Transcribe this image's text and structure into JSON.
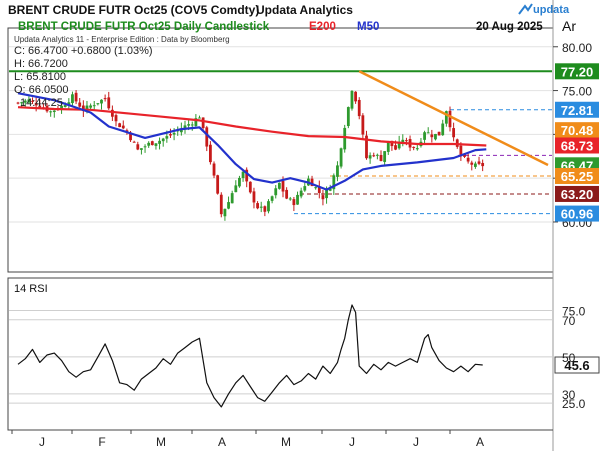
{
  "header": {
    "title": "BRENT CRUDE FUTR  Oct25 (COV5 Comdty)",
    "publisher": "Updata Analytics",
    "brand": "updata",
    "subtitle": "BRENT CRUDE FUTR  Oct25 Daily Candlestick",
    "legend_e200": "E200",
    "legend_m50": "M50",
    "date": "20 Aug 2025",
    "axis_corner": "Ar"
  },
  "info": {
    "source": "Updata Analytics 11 - Enterprise Edition : Data by Bloomberg",
    "close": "C: 66.4700 +0.6800 (1.03%)",
    "high": "H: 66.7200",
    "low": "L: 65.8100",
    "open": "O: 66.0500",
    "time": "14:44:25"
  },
  "colors": {
    "up": "#2e9a2e",
    "down": "#c61a1a",
    "e200": "#e8232a",
    "m50": "#2332cc",
    "trend": "#f08c1a",
    "green_line": "#1e8c1e",
    "purple": "#8b25b5",
    "blue_dash": "#2a8ce0",
    "orange_dash": "#f08c1a",
    "maroon": "#8b1a1a"
  },
  "chart_data": [
    {
      "type": "candlestick",
      "title": "BRENT CRUDE FUTR  Oct25 Daily Candlestick",
      "x_month_labels": [
        "J",
        "F",
        "M",
        "A",
        "M",
        "J",
        "J",
        "A"
      ],
      "y_tick_labels": [
        "80.00",
        "75.00",
        "70.00",
        "65.00",
        "60.00"
      ],
      "ylim": [
        58.4,
        81.0
      ],
      "price_path": [
        [
          0,
          73.6
        ],
        [
          3,
          73.9
        ],
        [
          6,
          73.3
        ],
        [
          9,
          72.6
        ],
        [
          12,
          73.2
        ],
        [
          15,
          74.3
        ],
        [
          18,
          72.8
        ],
        [
          21,
          73.5
        ],
        [
          24,
          74.1
        ],
        [
          27,
          71.4
        ],
        [
          30,
          70.3
        ],
        [
          33,
          68.2
        ],
        [
          36,
          68.9
        ],
        [
          39,
          69.3
        ],
        [
          42,
          69.9
        ],
        [
          45,
          70.7
        ],
        [
          48,
          71.4
        ],
        [
          50,
          72.1
        ],
        [
          52,
          68.8
        ],
        [
          54,
          65.1
        ],
        [
          56,
          60.9
        ],
        [
          58,
          62.3
        ],
        [
          60,
          64.4
        ],
        [
          62,
          65.6
        ],
        [
          64,
          63.2
        ],
        [
          66,
          61.7
        ],
        [
          68,
          61.3
        ],
        [
          70,
          62.9
        ],
        [
          72,
          64.4
        ],
        [
          74,
          62.7
        ],
        [
          76,
          62.2
        ],
        [
          78,
          63.6
        ],
        [
          80,
          64.9
        ],
        [
          82,
          63.9
        ],
        [
          84,
          62.8
        ],
        [
          86,
          64.1
        ],
        [
          88,
          66.4
        ],
        [
          90,
          71.0
        ],
        [
          92,
          75.2
        ],
        [
          93,
          74.0
        ],
        [
          94,
          72.2
        ],
        [
          96,
          67.3
        ],
        [
          98,
          67.8
        ],
        [
          100,
          67.2
        ],
        [
          102,
          69.1
        ],
        [
          104,
          68.3
        ],
        [
          106,
          69.5
        ],
        [
          108,
          68.7
        ],
        [
          110,
          68.5
        ],
        [
          112,
          70.4
        ],
        [
          114,
          69.9
        ],
        [
          116,
          70.0
        ],
        [
          118,
          72.8
        ],
        [
          120,
          69.4
        ],
        [
          122,
          67.5
        ],
        [
          124,
          66.8
        ],
        [
          126,
          66.4
        ],
        [
          128,
          66.47
        ]
      ],
      "ema200": [
        [
          0,
          73.1
        ],
        [
          10,
          72.9
        ],
        [
          20,
          72.8
        ],
        [
          30,
          72.4
        ],
        [
          40,
          72.0
        ],
        [
          50,
          71.6
        ],
        [
          60,
          70.9
        ],
        [
          70,
          70.3
        ],
        [
          80,
          69.8
        ],
        [
          90,
          69.7
        ],
        [
          100,
          69.2
        ],
        [
          110,
          68.9
        ],
        [
          120,
          68.9
        ],
        [
          129,
          68.73
        ]
      ],
      "ma50": [
        [
          0,
          74.7
        ],
        [
          10,
          73.9
        ],
        [
          20,
          72.5
        ],
        [
          25,
          70.9
        ],
        [
          35,
          69.6
        ],
        [
          45,
          70.6
        ],
        [
          50,
          70.8
        ],
        [
          55,
          68.8
        ],
        [
          60,
          66.6
        ],
        [
          65,
          64.9
        ],
        [
          70,
          64.5
        ],
        [
          75,
          65.0
        ],
        [
          80,
          64.5
        ],
        [
          85,
          63.7
        ],
        [
          90,
          64.7
        ],
        [
          95,
          66.0
        ],
        [
          100,
          66.4
        ],
        [
          110,
          66.8
        ],
        [
          120,
          67.3
        ],
        [
          126,
          68.2
        ],
        [
          129,
          68.3
        ]
      ],
      "trendline": [
        [
          94,
          77.2
        ],
        [
          146,
          66.5
        ]
      ],
      "price_labels": [
        {
          "text": "77.20",
          "value": 77.2,
          "bg": "#1e8c1e"
        },
        {
          "text": "72.81",
          "value": 72.81,
          "bg": "#2a8ce0"
        },
        {
          "text": "70.48",
          "value": 70.48,
          "bg": "#f08c1a"
        },
        {
          "text": "68.73",
          "value": 68.73,
          "bg": "#e8232a"
        },
        {
          "text": "66.47",
          "value": 66.47,
          "bg": "#2e9a2e"
        },
        {
          "text": "65.25",
          "value": 65.25,
          "bg": "#f08c1a"
        },
        {
          "text": "63.20",
          "value": 63.2,
          "bg": "#8b1a1a"
        },
        {
          "text": "60.96",
          "value": 60.96,
          "bg": "#2a8ce0"
        }
      ]
    },
    {
      "type": "line",
      "title": "14 RSI",
      "ylim": [
        17,
        85
      ],
      "y_tick_labels": [
        "75.0",
        "70",
        "50",
        "30",
        "25.0"
      ],
      "last_value_label": "45.6",
      "rsi": [
        [
          0,
          46
        ],
        [
          2,
          49
        ],
        [
          4,
          54
        ],
        [
          6,
          47
        ],
        [
          8,
          51
        ],
        [
          10,
          52
        ],
        [
          12,
          48
        ],
        [
          14,
          42
        ],
        [
          16,
          39
        ],
        [
          18,
          42
        ],
        [
          20,
          43
        ],
        [
          22,
          50
        ],
        [
          24,
          57
        ],
        [
          26,
          48
        ],
        [
          28,
          36
        ],
        [
          30,
          35
        ],
        [
          32,
          32
        ],
        [
          34,
          38
        ],
        [
          36,
          41
        ],
        [
          38,
          44
        ],
        [
          40,
          49
        ],
        [
          42,
          46
        ],
        [
          44,
          52
        ],
        [
          46,
          55
        ],
        [
          48,
          58
        ],
        [
          50,
          60
        ],
        [
          52,
          36
        ],
        [
          54,
          28
        ],
        [
          56,
          23
        ],
        [
          58,
          30
        ],
        [
          60,
          36
        ],
        [
          62,
          40
        ],
        [
          64,
          34
        ],
        [
          66,
          28
        ],
        [
          68,
          26
        ],
        [
          70,
          31
        ],
        [
          72,
          36
        ],
        [
          74,
          40
        ],
        [
          76,
          35
        ],
        [
          78,
          37
        ],
        [
          80,
          41
        ],
        [
          82,
          38
        ],
        [
          84,
          45
        ],
        [
          86,
          41
        ],
        [
          88,
          47
        ],
        [
          89,
          54
        ],
        [
          90,
          60
        ],
        [
          91,
          70
        ],
        [
          92,
          78
        ],
        [
          93,
          74
        ],
        [
          94,
          45
        ],
        [
          95,
          43
        ],
        [
          96,
          41
        ],
        [
          98,
          46
        ],
        [
          100,
          43
        ],
        [
          102,
          47
        ],
        [
          104,
          45
        ],
        [
          106,
          47
        ],
        [
          108,
          49
        ],
        [
          110,
          47
        ],
        [
          112,
          60
        ],
        [
          113,
          62
        ],
        [
          114,
          55
        ],
        [
          116,
          48
        ],
        [
          118,
          44
        ],
        [
          120,
          42
        ],
        [
          122,
          45
        ],
        [
          124,
          42
        ],
        [
          126,
          46
        ],
        [
          128,
          45.6
        ]
      ]
    }
  ]
}
